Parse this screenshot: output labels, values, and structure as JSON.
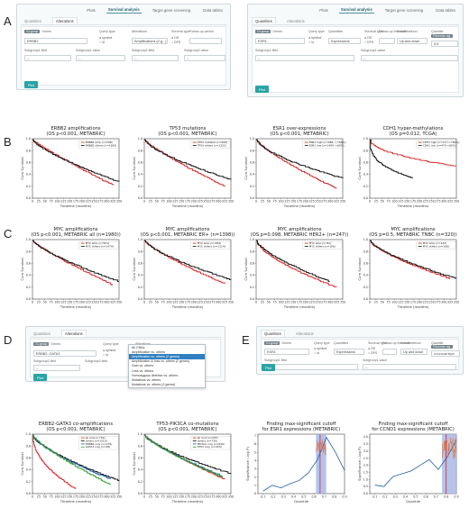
{
  "letters": {
    "a": "A",
    "b": "B",
    "c": "C",
    "d": "D",
    "e": "E"
  },
  "nav": [
    "Plots",
    "Survival analysis",
    "Target gene screening",
    "Data tables"
  ],
  "tabs": [
    "Quantities",
    "Alterations"
  ],
  "panelA": {
    "genes_label": "Genes",
    "genes": [
      "ERBB2"
    ],
    "genes_chip": "GI-group",
    "qtype_label": "Query type",
    "qtype_opts": [
      "symbol",
      "id"
    ],
    "alter_label": "Alterations",
    "alter_value": "Amplifications (2 g...)",
    "surv_label": "Survival type",
    "surv_opts": [
      "OS",
      "DFS"
    ],
    "followup_label": "Follow-up period",
    "sub1_label": "Subgroup1 field",
    "sub1v_label": "Subgroup1 value",
    "sub2_label": "Subgroup2 field",
    "sub2v_label": "Subgroup2 value",
    "dash": "--",
    "plot": "Plot"
  },
  "panelA2": {
    "genes_label": "Genes",
    "genes": "ESR1",
    "genes_chip": "GI-group",
    "qtype_label": "Query type",
    "qtype_opts": [
      "symbol",
      "id"
    ],
    "quant_label": "Quantities",
    "quant_value": "Expressions",
    "surv_label": "Survival type",
    "surv_opts": [
      "OS",
      "DFS"
    ],
    "follow_label": "Follow-up threshold",
    "cut_label": "Cutoff method",
    "cut_value": "Up and down",
    "quantile_label": "Quantile",
    "quantile_chip": "Find max sig.",
    "quantile_value": "0.5",
    "sub1_label": "Subgroup1 field",
    "sub1v_label": "Subgroup1 value",
    "dash": "--",
    "plot": "Plot"
  },
  "panelD": {
    "genes_label": "Genes",
    "genes": "ERBB2, GATA3",
    "genes_chip": "GI-group",
    "qtype_label": "Query type",
    "qtype_opts": [
      "symbol",
      "id"
    ],
    "alter_label": "Alterations",
    "options": [
      "All CNAs",
      "Amplification vs. others",
      "Amplification vs. others (2 genes)",
      "Amplification & loss vs. others (2 genes)",
      "Gain vs. others",
      "Loss vs. others",
      "Homozygous deletion vs. others",
      "Mutations vs. others",
      "Mutations vs. others (2 genes)"
    ],
    "selected_index": 2,
    "sub1_label": "Subgroup1 field",
    "sub2_label": "Subgroup2 field",
    "dash": "--",
    "plot": "Plot"
  },
  "panelE": {
    "genes_label": "Genes",
    "genes": "ESR1",
    "genes_chip": "GI-group",
    "qtype_label": "Query type",
    "qtype_opts": [
      "symbol",
      "id"
    ],
    "quant_label": "Quantities",
    "quant_value": "Expressions",
    "surv_label": "Survival type",
    "surv_opts": [
      "OS",
      "DFS"
    ],
    "follow_label": "Follow-up threshold",
    "cut_label": "Cutoff method",
    "cut_value": "Up and down",
    "quantile_label": "Quantile",
    "quantile_chip": "Find max sig.",
    "quantile_value": "0.642164875999",
    "sub1_label": "Subgroup1 field",
    "sub1v_label": "Subgroup1 value",
    "dash": "--",
    "plot": "Plot"
  },
  "colors": {
    "red": "#d62728",
    "black": "#111111",
    "blue": "#1f5fa8",
    "green": "#2ca02c",
    "orange": "#e0733a",
    "teal": "#2aa3a6",
    "band": "#a8b8e8"
  },
  "km_xlabel": "Timeline (months)",
  "km_ylabel": "Cum Survival",
  "km_plots": [
    {
      "title1": "ERBB2 amplifications",
      "title2": "(OS p<0.001, METABRIC)",
      "legend": [
        "ERBB2 amp (n=298)",
        "ERBB2 others (n=1682)"
      ]
    },
    {
      "title1": "TP53 mutations",
      "title2": "(OS p<0.001, METABRIC)",
      "legend": [
        "TP53 mutated (n=658)",
        "TP53 others (n=1322)"
      ]
    },
    {
      "title1": "ESR1 over-expressions",
      "title2": "(OS p<0.001, METABRIC)",
      "legend": [
        "ESR1 high (n=486, >=68%)",
        "ESR1 low (n=1494, <68%)"
      ]
    },
    {
      "title1": "CDH1 hyper-methylations",
      "title2": "(OS p=0.012, TCGA)",
      "legend": [
        "CDH1 high (n=117,>=80%)",
        "CDH1 low (n=474,<80%)"
      ]
    },
    {
      "title1": "MYC amplifications",
      "title2": "(OS p<0.001, METABRIC all (n=1980))",
      "legend": [
        "MYC amp (n=501)",
        "MYC others (n=1479)"
      ]
    },
    {
      "title1": "MYC amplifications",
      "title2": "(OS p<0.001, METABRIC ER+ (n=1398))",
      "legend": [
        "MYC amp (n=284)",
        "MYC others (n=1114)"
      ]
    },
    {
      "title1": "MYC amplifications",
      "title2": "(OS p=0.098, METABRIC HER2+ (n=247))",
      "legend": [
        "MYC amp (n=81)",
        "MYC others (n=166)"
      ]
    },
    {
      "title1": "MYC amplifications",
      "title2": "(OS p=0.5, METABRIC TNBC (n=320))",
      "legend": [
        "MYC amp (n=132)",
        "MYC others (n=188)"
      ]
    },
    {
      "title1": "ERBB2-GATA3 co-amplifications",
      "title2": "(OS p<0.001, METABRIC)",
      "legend": [
        "all amp (n=59)",
        "others (n=1519)",
        "ERBB2 only (n=279)",
        "GATA3 only (n=48)"
      ]
    },
    {
      "title1": "TP53-PIK3CA co-mutations",
      "title2": "(OS p<0.001, METABRIC)",
      "legend": [
        "all mut (n=203)",
        "others (n=730)",
        "PIK3CA only (n=640)",
        "TP53 only (n=455)"
      ]
    }
  ],
  "km_xticks": [
    "0",
    "25",
    "50",
    "75",
    "100",
    "125",
    "150",
    "175",
    "200",
    "225",
    "250",
    "275",
    "300",
    "325",
    "350"
  ],
  "km_yticks": [
    "0.0",
    "0.2",
    "0.4",
    "0.6",
    "0.8",
    "1.0"
  ],
  "cutoff_plots": [
    {
      "title1": "Finding max-significant cutoff",
      "title2": "for ESR1 expressions (METABRIC)",
      "xlabel": "Quantile",
      "ylabel": "Significance (-log P)",
      "yticks": [
        "0",
        "1",
        "2",
        "3",
        "4",
        "5",
        "6",
        "7"
      ],
      "xticks": [
        "0.1",
        "0.2",
        "0.3",
        "0.4",
        "0.5",
        "0.6",
        "0.7",
        "0.8",
        "0.9"
      ]
    },
    {
      "title1": "Finding max-significant cutoff",
      "title2": "for CCND1 expressions (METABRIC)",
      "xlabel": "Quantile",
      "ylabel": "Significance (-log P)",
      "yticks": [
        "0.0",
        "0.5",
        "1.0",
        "1.5",
        "2.0",
        "2.5",
        "3.0",
        "3.5",
        "4.0"
      ],
      "xticks": [
        "0.1",
        "0.2",
        "0.3",
        "0.4",
        "0.5",
        "0.6",
        "0.7",
        "0.8",
        "0.9"
      ]
    }
  ]
}
